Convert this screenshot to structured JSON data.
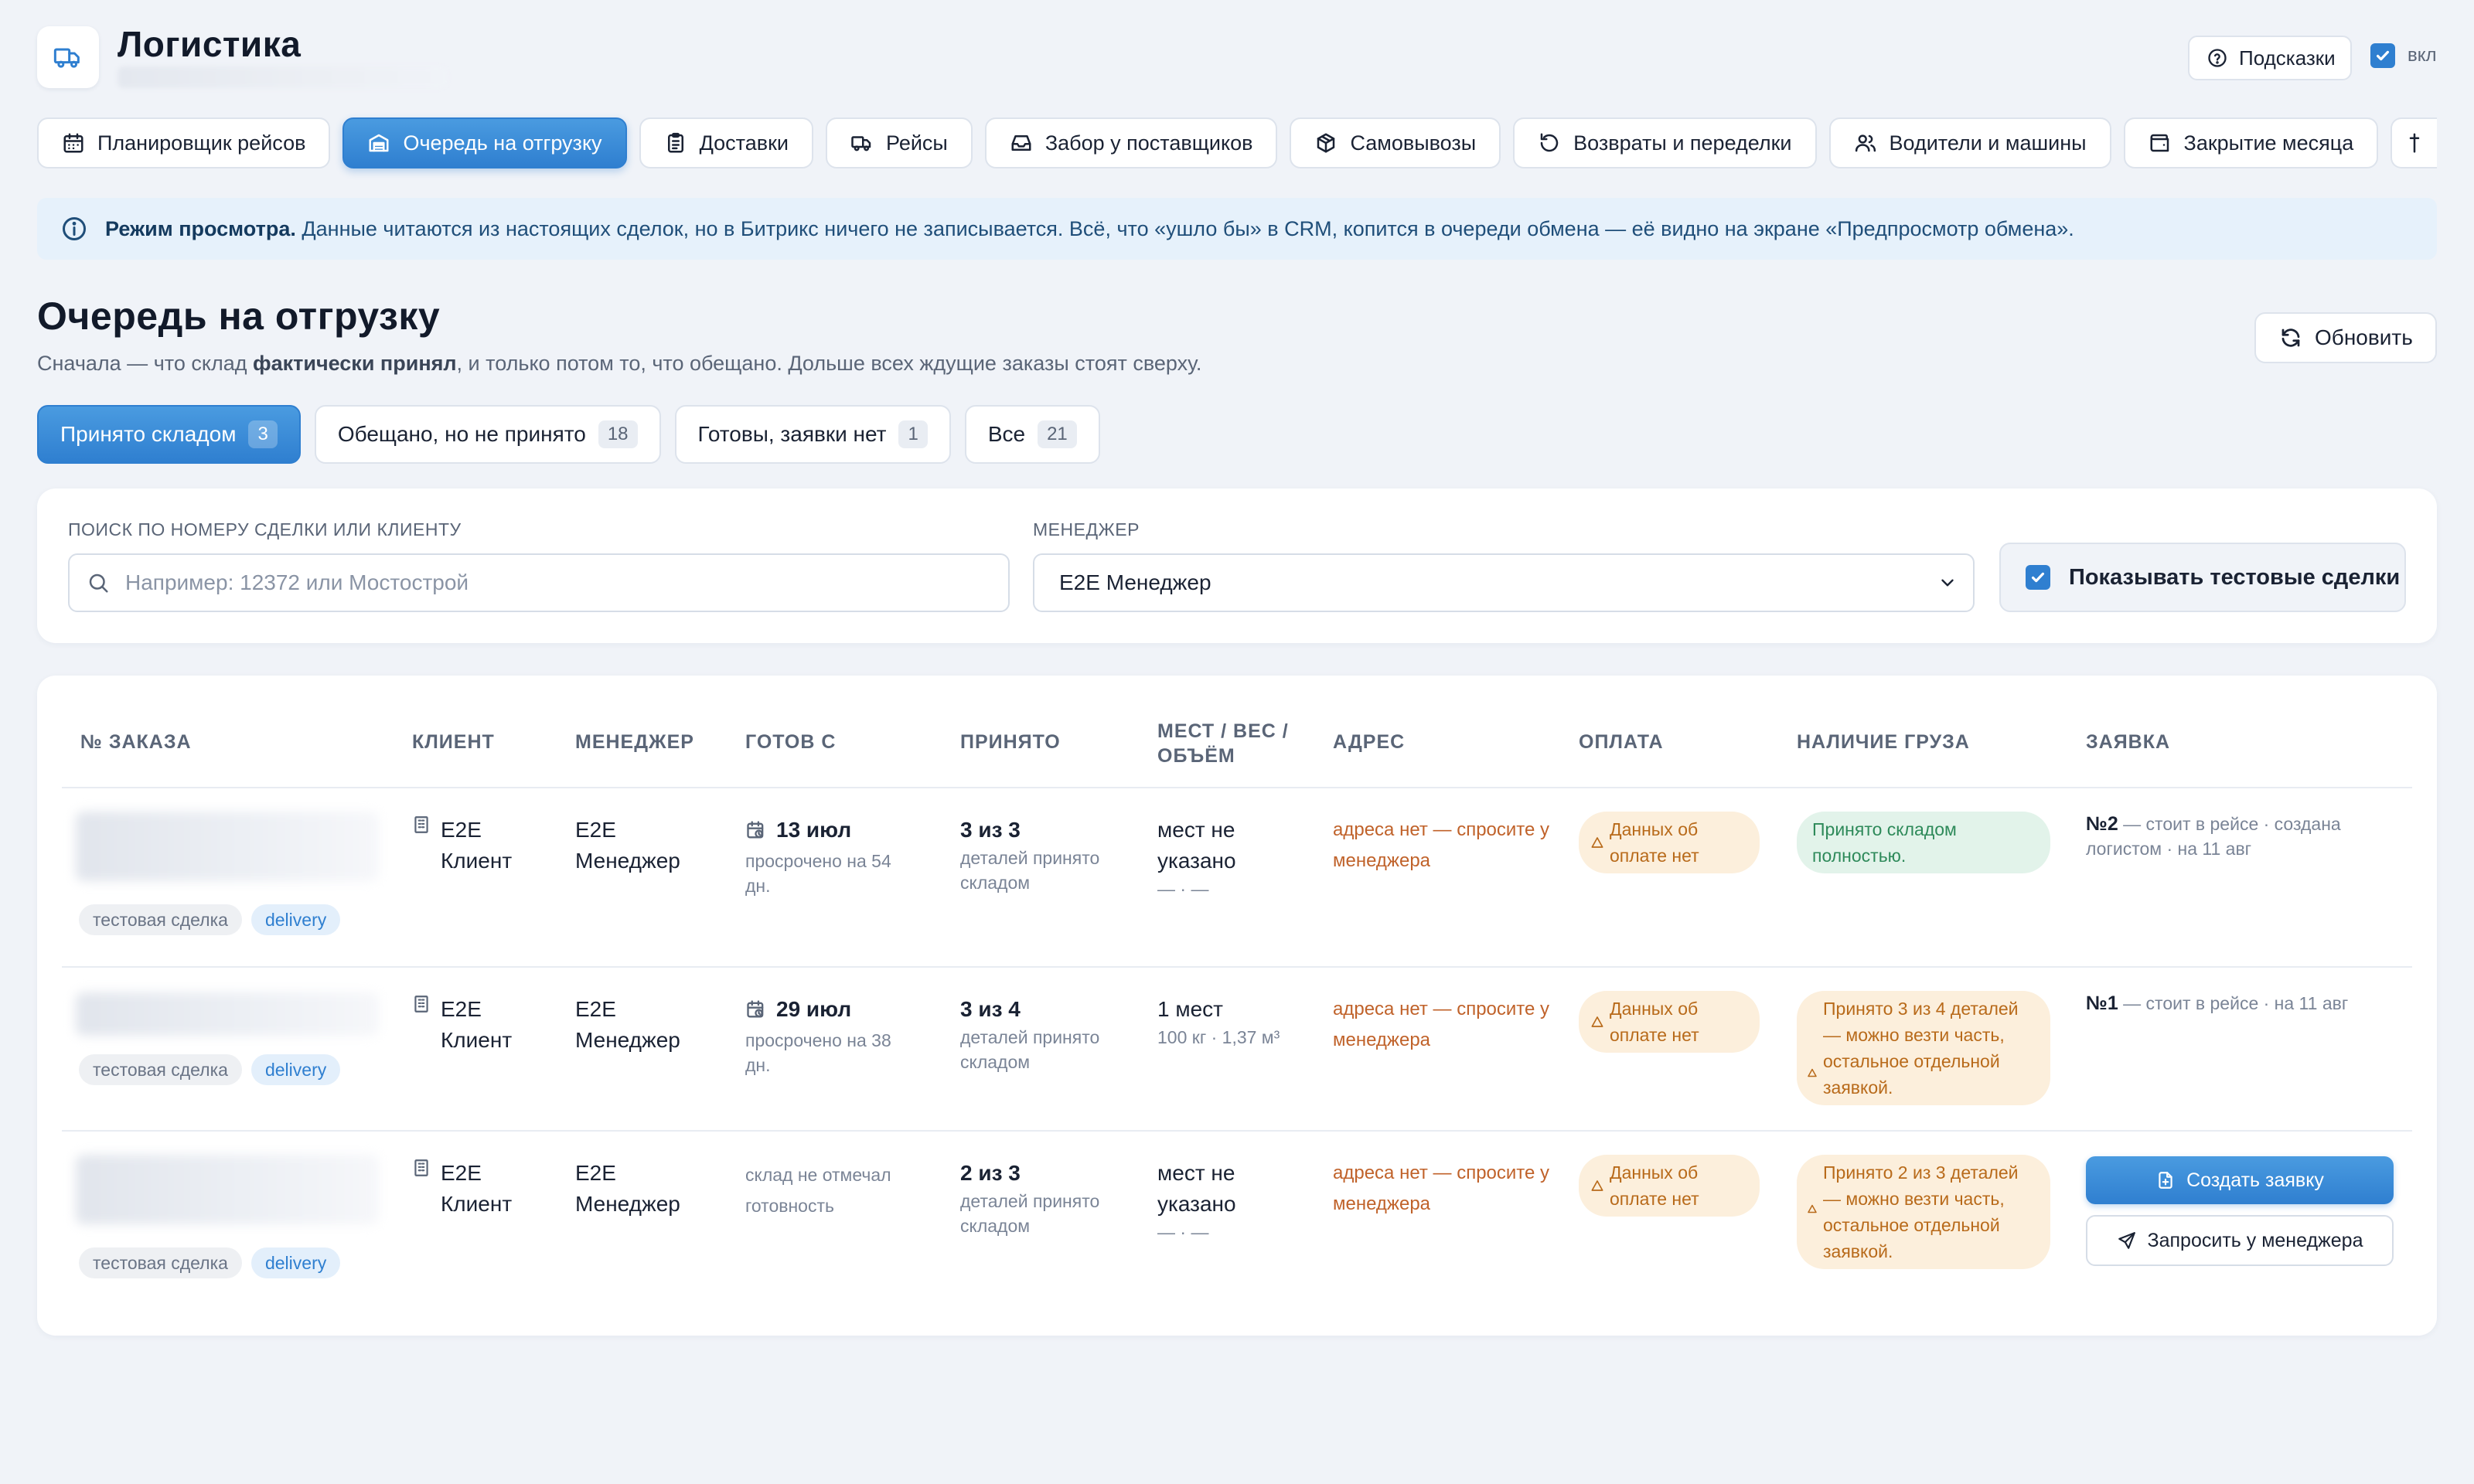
{
  "app": {
    "title": "Логистика"
  },
  "header": {
    "hints_label": "Подсказки",
    "hints_toggle_label": "вкл"
  },
  "tabs": [
    {
      "label": "Планировщик рейсов",
      "icon": "calendar-icon"
    },
    {
      "label": "Очередь на отгрузку",
      "icon": "warehouse-icon",
      "active": true
    },
    {
      "label": "Доставки",
      "icon": "clipboard-icon"
    },
    {
      "label": "Рейсы",
      "icon": "truck-icon"
    },
    {
      "label": "Забор у поставщиков",
      "icon": "inbox-icon"
    },
    {
      "label": "Самовывозы",
      "icon": "package-icon"
    },
    {
      "label": "Возвраты и переделки",
      "icon": "undo-icon"
    },
    {
      "label": "Водители и машины",
      "icon": "users-icon"
    },
    {
      "label": "Закрытие месяца",
      "icon": "wallet-icon"
    }
  ],
  "banner": {
    "bold": "Режим просмотра.",
    "text": "Данные читаются из настоящих сделок, но в Битрикс ничего не записывается. Всё, что «ушло бы» в CRM, копится в очереди обмена — её видно на экране «Предпросмотр обмена»."
  },
  "page": {
    "title": "Очередь на отгрузку",
    "subtitle_pre": "Сначала — что склад ",
    "subtitle_bold": "фактически принял",
    "subtitle_post": ", и только потом то, что обещано. Дольше всех ждущие заказы стоят сверху.",
    "refresh_label": "Обновить"
  },
  "filters": [
    {
      "label": "Принято складом",
      "count": "3",
      "active": true
    },
    {
      "label": "Обещано, но не принято",
      "count": "18"
    },
    {
      "label": "Готовы, заявки нет",
      "count": "1"
    },
    {
      "label": "Все",
      "count": "21"
    }
  ],
  "search": {
    "label": "ПОИСК ПО НОМЕРУ СДЕЛКИ ИЛИ КЛИЕНТУ",
    "placeholder": "Например: 12372 или Мостострой",
    "manager_label": "МЕНЕДЖЕР",
    "manager_value": "E2E Менеджер",
    "show_test_label": "Показывать тестовые сделки"
  },
  "table": {
    "headers": [
      "№ ЗАКАЗА",
      "КЛИЕНТ",
      "МЕНЕДЖЕР",
      "ГОТОВ С",
      "ПРИНЯТО",
      "МЕСТ / ВЕС / ОБЪЁМ",
      "АДРЕС",
      "ОПЛАТА",
      "НАЛИЧИЕ ГРУЗА",
      "ЗАЯВКА"
    ],
    "rows": [
      {
        "tags": [
          "тестовая сделка",
          "delivery"
        ],
        "client": "E2E Клиент",
        "manager": "E2E Менеджер",
        "ready_date": "13 июл",
        "ready_note": "просрочено на 54 дн.",
        "accepted": "3 из 3",
        "accepted_note": "деталей принято складом",
        "places": "мест не указано",
        "places_note": "— · —",
        "address": "адреса нет — спросите у менеджера",
        "payment": "Данных об оплате нет",
        "cargo": "Принято складом полностью.",
        "request_num": "№2",
        "request_text": " — стоит в рейсе · создана логистом · на 11 авг"
      },
      {
        "tags": [
          "тестовая сделка",
          "delivery"
        ],
        "client": "E2E Клиент",
        "manager": "E2E Менеджер",
        "ready_date": "29 июл",
        "ready_note": "просрочено на 38 дн.",
        "accepted": "3 из 4",
        "accepted_note": "деталей принято складом",
        "places": "1 мест",
        "places_note": "100 кг · 1,37 м³",
        "address": "адреса нет — спросите у менеджера",
        "payment": "Данных об оплате нет",
        "cargo": "Принято 3 из 4 деталей — можно везти часть, остальное отдельной заявкой.",
        "request_num": "№1",
        "request_text": " — стоит в рейсе · на 11 авг"
      },
      {
        "tags": [
          "тестовая сделка",
          "delivery"
        ],
        "client": "E2E Клиент",
        "manager": "E2E Менеджер",
        "ready_note": "склад не отмечал готовность",
        "accepted": "2 из 3",
        "accepted_note": "деталей принято складом",
        "places": "мест не указано",
        "places_note": "— · —",
        "address": "адреса нет — спросите у менеджера",
        "payment": "Данных об оплате нет",
        "cargo": "Принято 2 из 3 деталей — можно везти часть, остальное отдельной заявкой.",
        "create_label": "Создать заявку",
        "ask_label": "Запросить у менеджера"
      }
    ]
  },
  "colors": {
    "accent": "#2f7fd0",
    "warn_bg": "#fcefdc",
    "warn_text": "#b86a1a",
    "ok_bg": "#e2f3ea",
    "ok_text": "#2e8a5a",
    "address": "#c0622a"
  }
}
